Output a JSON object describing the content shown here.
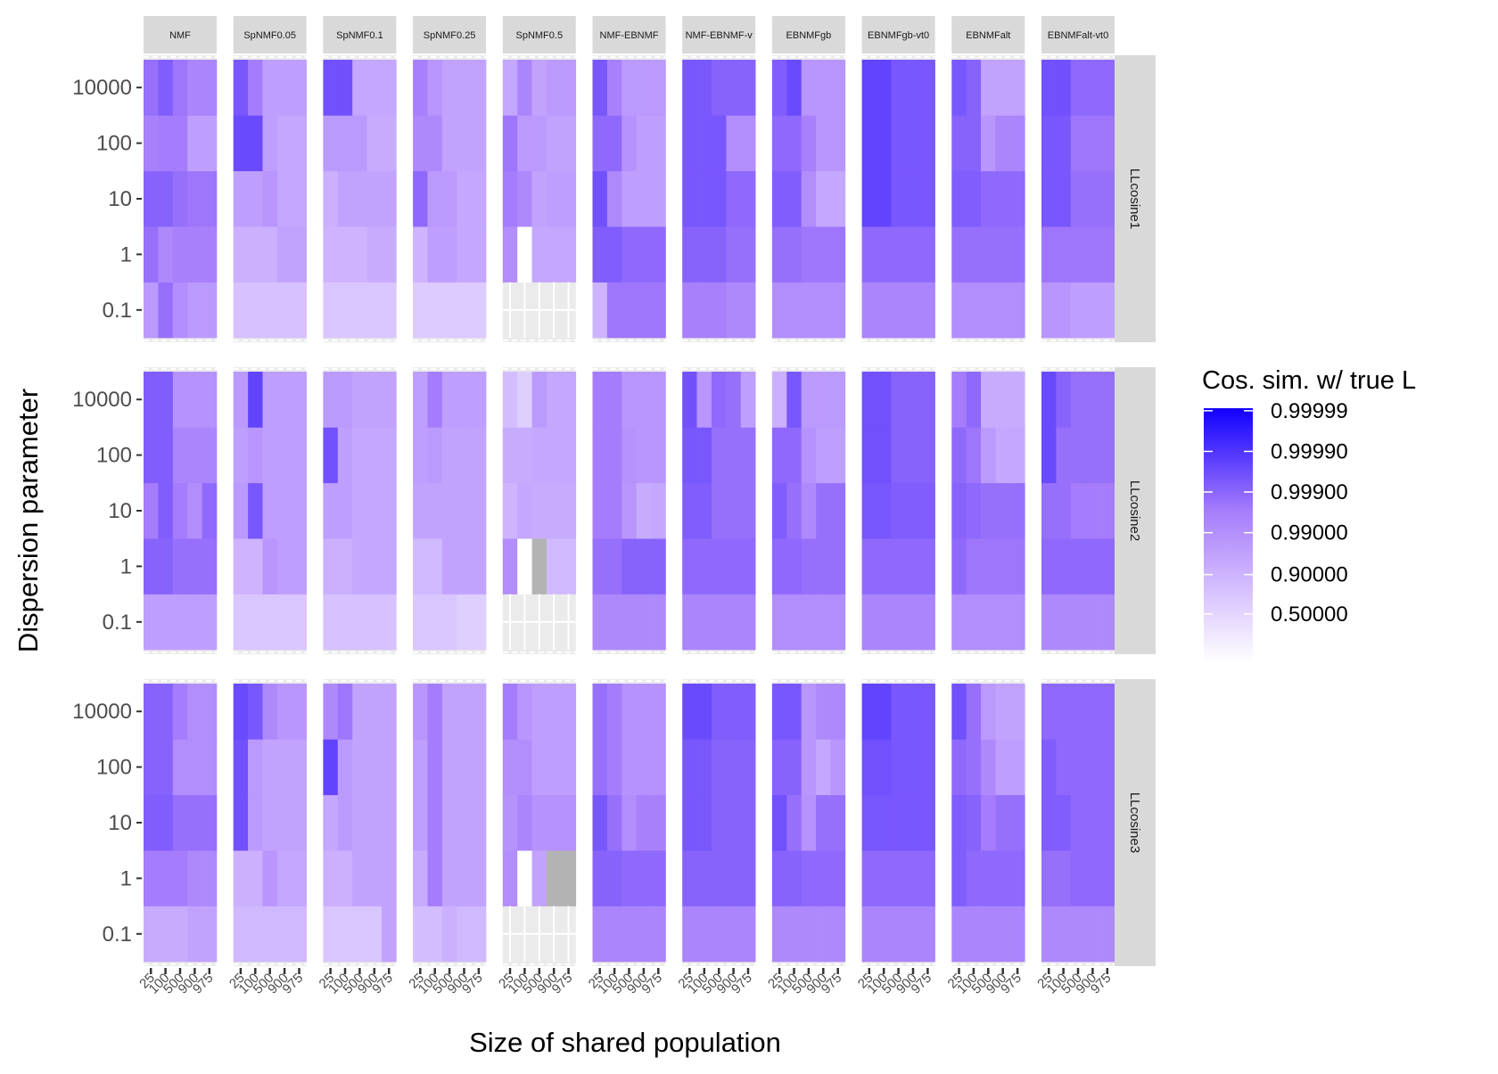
{
  "chart_data": {
    "type": "heatmap",
    "xlabel": "Size of shared population",
    "ylabel": "Dispersion parameter",
    "x_categories": [
      "25",
      "100",
      "500",
      "900",
      "975"
    ],
    "y_categories": [
      "0.1",
      "1",
      "10",
      "100",
      "10000"
    ],
    "facet_columns": [
      "NMF",
      "SpNMF0.05",
      "SpNMF0.1",
      "SpNMF0.25",
      "SpNMF0.5",
      "NMF-EBNMF",
      "NMF-EBNMF-v",
      "EBNMFgb",
      "EBNMFgb-vt0",
      "EBNMFalt",
      "EBNMFalt-vt0"
    ],
    "facet_rows": [
      "LLcosine1",
      "LLcosine2",
      "LLcosine3"
    ],
    "legend": {
      "title": "Cos. sim. w/ true L",
      "position": "right",
      "labels": [
        "0.99999",
        "0.99990",
        "0.99900",
        "0.99000",
        "0.90000",
        "0.50000"
      ],
      "low_color": "#ffffff",
      "high_color": "#1000ff",
      "missing_color": "#b3b3b3"
    },
    "value_note": "cell values are in levels on the legend's transformed scale (0 = 0.5, 1 = 0.9, 2 = 0.99, 3 = 0.999, 4 = 0.9999, 5 = 0.99999); null = missing",
    "cells": [
      [
        [
          [
            2.3,
            3.2,
            2.6,
            2.3,
            2.3
          ],
          [
            3.2,
            2.7,
            2.9,
            2.9,
            2.9
          ],
          [
            3.4,
            3.4,
            3.2,
            3.1,
            3.1
          ],
          [
            2.9,
            3.0,
            3.0,
            2.2,
            2.2
          ],
          [
            3.2,
            3.5,
            3.1,
            2.8,
            2.8
          ]
        ],
        [
          [
            1.4,
            1.4,
            1.4,
            1.4,
            1.4
          ],
          [
            1.8,
            1.8,
            1.8,
            2.1,
            2.1
          ],
          [
            2.2,
            2.2,
            2.4,
            2.0,
            2.0
          ],
          [
            3.8,
            3.8,
            2.2,
            2.0,
            2.0
          ],
          [
            3.6,
            3.0,
            2.2,
            2.2,
            2.2
          ]
        ],
        [
          [
            1.3,
            1.3,
            1.3,
            1.3,
            1.3
          ],
          [
            1.7,
            1.7,
            1.7,
            1.9,
            1.9
          ],
          [
            1.8,
            2.1,
            2.1,
            2.1,
            2.1
          ],
          [
            2.3,
            2.3,
            2.3,
            1.9,
            1.9
          ],
          [
            3.7,
            3.7,
            2.0,
            2.0,
            2.0
          ]
        ],
        [
          [
            1.2,
            1.2,
            1.2,
            1.2,
            1.2
          ],
          [
            1.7,
            2.2,
            2.2,
            2.0,
            2.0
          ],
          [
            3.3,
            2.3,
            2.3,
            2.0,
            2.0
          ],
          [
            2.7,
            2.7,
            2.1,
            2.1,
            2.1
          ],
          [
            2.9,
            2.4,
            2.1,
            2.1,
            2.1
          ]
        ],
        [
          [
            null,
            null,
            null,
            null,
            null
          ],
          [
            2.6,
            null,
            2.0,
            2.0,
            2.0
          ],
          [
            3.0,
            2.7,
            2.1,
            2.2,
            2.2
          ],
          [
            3.1,
            2.3,
            2.3,
            2.1,
            2.1
          ],
          [
            2.0,
            2.8,
            2.1,
            2.3,
            2.3
          ]
        ],
        [
          [
            1.7,
            3.1,
            3.1,
            3.1,
            3.1
          ],
          [
            3.5,
            3.5,
            3.3,
            3.3,
            3.3
          ],
          [
            3.7,
            2.7,
            2.2,
            2.2,
            2.2
          ],
          [
            3.3,
            3.3,
            2.5,
            2.2,
            2.2
          ],
          [
            3.6,
            2.9,
            2.3,
            2.3,
            2.3
          ]
        ],
        [
          [
            2.9,
            2.9,
            2.9,
            2.7,
            2.7
          ],
          [
            3.4,
            3.4,
            3.4,
            3.2,
            3.2
          ],
          [
            3.6,
            3.6,
            3.6,
            3.3,
            3.3
          ],
          [
            3.6,
            3.6,
            3.6,
            2.6,
            2.6
          ],
          [
            3.6,
            3.6,
            3.4,
            3.4,
            3.4
          ]
        ],
        [
          [
            2.6,
            2.6,
            2.6,
            2.6,
            2.6
          ],
          [
            3.2,
            3.2,
            3.1,
            3.1,
            3.1
          ],
          [
            3.5,
            3.5,
            2.6,
            2.0,
            2.0
          ],
          [
            3.3,
            3.3,
            2.9,
            2.4,
            2.4
          ],
          [
            3.5,
            3.8,
            2.4,
            2.4,
            2.4
          ]
        ],
        [
          [
            2.8,
            2.8,
            2.8,
            2.8,
            2.8
          ],
          [
            3.3,
            3.3,
            3.3,
            3.3,
            3.3
          ],
          [
            3.9,
            3.9,
            3.6,
            3.6,
            3.6
          ],
          [
            3.9,
            3.9,
            3.6,
            3.6,
            3.6
          ],
          [
            3.9,
            3.9,
            3.6,
            3.6,
            3.6
          ]
        ],
        [
          [
            2.6,
            2.6,
            2.6,
            2.6,
            2.6
          ],
          [
            3.2,
            3.2,
            3.2,
            3.2,
            3.2
          ],
          [
            3.5,
            3.5,
            3.3,
            3.3,
            3.3
          ],
          [
            3.4,
            3.4,
            2.4,
            2.8,
            2.8
          ],
          [
            3.6,
            3.4,
            2.1,
            2.1,
            2.1
          ]
        ],
        [
          [
            2.4,
            2.4,
            2.2,
            2.2,
            2.2
          ],
          [
            3.1,
            3.1,
            3.1,
            3.1,
            3.1
          ],
          [
            3.6,
            3.6,
            3.2,
            3.2,
            3.2
          ],
          [
            3.6,
            3.6,
            3.1,
            3.1,
            3.1
          ],
          [
            3.7,
            3.7,
            3.3,
            3.3,
            3.3
          ]
        ]
      ],
      [
        [
          [
            2.2,
            2.2,
            2.2,
            2.2,
            2.2
          ],
          [
            3.4,
            3.4,
            3.2,
            3.2,
            3.2
          ],
          [
            3.0,
            3.5,
            3.0,
            2.6,
            3.3
          ],
          [
            3.5,
            3.5,
            2.8,
            2.8,
            2.8
          ],
          [
            3.5,
            3.5,
            2.5,
            2.5,
            2.5
          ]
        ],
        [
          [
            1.3,
            1.3,
            1.3,
            1.3,
            1.3
          ],
          [
            1.7,
            1.7,
            2.4,
            2.2,
            2.2
          ],
          [
            2.3,
            3.6,
            2.2,
            2.2,
            2.2
          ],
          [
            2.2,
            2.4,
            2.2,
            2.2,
            2.2
          ],
          [
            2.3,
            3.9,
            2.2,
            2.2,
            2.2
          ]
        ],
        [
          [
            1.4,
            1.4,
            1.4,
            1.4,
            1.4
          ],
          [
            1.8,
            1.8,
            2.0,
            2.0,
            2.0
          ],
          [
            2.2,
            2.2,
            2.0,
            2.0,
            2.0
          ],
          [
            3.7,
            2.2,
            2.0,
            2.0,
            2.0
          ],
          [
            2.3,
            2.3,
            2.1,
            2.1,
            2.1
          ]
        ],
        [
          [
            1.3,
            1.3,
            1.3,
            1.1,
            1.1
          ],
          [
            1.6,
            1.6,
            2.1,
            2.1,
            2.1
          ],
          [
            2.1,
            2.1,
            2.1,
            2.1,
            2.1
          ],
          [
            2.2,
            2.3,
            2.1,
            2.1,
            2.1
          ],
          [
            2.2,
            3.0,
            2.2,
            2.2,
            2.2
          ]
        ],
        [
          [
            null,
            null,
            null,
            null,
            null
          ],
          [
            2.6,
            null,
            null,
            1.6,
            1.6
          ],
          [
            1.7,
            2.0,
            1.9,
            1.9,
            1.9
          ],
          [
            1.9,
            1.9,
            2.0,
            2.0,
            2.0
          ],
          [
            1.5,
            1.1,
            2.3,
            2.0,
            2.0
          ]
        ],
        [
          [
            2.7,
            2.7,
            2.7,
            2.7,
            2.7
          ],
          [
            3.2,
            3.2,
            3.4,
            3.4,
            3.4
          ],
          [
            3.0,
            3.0,
            2.4,
            1.9,
            2.0
          ],
          [
            3.0,
            3.0,
            2.5,
            2.4,
            2.4
          ],
          [
            3.0,
            3.0,
            2.4,
            2.4,
            2.4
          ]
        ],
        [
          [
            2.8,
            2.8,
            2.8,
            2.8,
            2.8
          ],
          [
            3.3,
            3.3,
            3.3,
            3.3,
            3.3
          ],
          [
            3.5,
            3.5,
            3.2,
            3.2,
            3.2
          ],
          [
            3.6,
            3.6,
            3.2,
            3.2,
            3.2
          ],
          [
            3.7,
            2.4,
            3.3,
            3.2,
            2.2
          ]
        ],
        [
          [
            2.6,
            2.6,
            2.6,
            2.6,
            2.6
          ],
          [
            3.3,
            3.3,
            3.2,
            3.2,
            3.2
          ],
          [
            3.5,
            3.2,
            2.7,
            3.2,
            3.2
          ],
          [
            3.3,
            3.3,
            2.5,
            2.2,
            2.2
          ],
          [
            1.8,
            3.6,
            2.3,
            2.3,
            2.3
          ]
        ],
        [
          [
            2.8,
            2.8,
            2.8,
            2.8,
            2.8
          ],
          [
            3.3,
            3.3,
            3.3,
            3.3,
            3.3
          ],
          [
            3.6,
            3.6,
            3.5,
            3.5,
            3.5
          ],
          [
            3.7,
            3.7,
            3.4,
            3.4,
            3.4
          ],
          [
            3.7,
            3.7,
            3.4,
            3.4,
            3.4
          ]
        ],
        [
          [
            2.6,
            2.6,
            2.6,
            2.6,
            2.6
          ],
          [
            3.3,
            3.1,
            3.1,
            3.1,
            3.1
          ],
          [
            3.4,
            3.3,
            3.2,
            3.2,
            3.2
          ],
          [
            3.3,
            3.1,
            2.3,
            2.0,
            2.0
          ],
          [
            3.0,
            3.3,
            1.9,
            1.9,
            1.9
          ]
        ],
        [
          [
            2.7,
            2.7,
            2.7,
            2.7,
            2.7
          ],
          [
            3.3,
            3.3,
            3.3,
            3.3,
            3.3
          ],
          [
            3.2,
            3.2,
            3.0,
            3.0,
            3.0
          ],
          [
            3.8,
            3.2,
            3.2,
            3.2,
            3.2
          ],
          [
            3.8,
            3.4,
            3.2,
            3.2,
            3.2
          ]
        ]
      ],
      [
        [
          [
            1.9,
            1.9,
            1.9,
            2.1,
            2.1
          ],
          [
            3.0,
            3.0,
            3.0,
            2.7,
            2.7
          ],
          [
            3.5,
            3.5,
            3.2,
            3.2,
            3.2
          ],
          [
            3.4,
            3.4,
            2.6,
            2.6,
            2.6
          ],
          [
            3.4,
            3.4,
            3.0,
            2.6,
            2.6
          ]
        ],
        [
          [
            1.6,
            1.6,
            1.6,
            1.6,
            1.6
          ],
          [
            1.8,
            1.8,
            2.4,
            2.0,
            2.0
          ],
          [
            3.7,
            2.3,
            2.1,
            2.1,
            2.1
          ],
          [
            3.7,
            2.3,
            2.1,
            2.1,
            2.1
          ],
          [
            3.8,
            3.6,
            2.7,
            2.4,
            2.4
          ]
        ],
        [
          [
            1.3,
            1.3,
            1.3,
            1.3,
            2.1
          ],
          [
            1.8,
            1.8,
            2.1,
            2.1,
            2.1
          ],
          [
            2.0,
            2.3,
            2.1,
            2.1,
            2.1
          ],
          [
            3.9,
            2.3,
            2.1,
            2.1,
            2.1
          ],
          [
            2.7,
            3.1,
            2.1,
            2.1,
            2.1
          ]
        ],
        [
          [
            1.5,
            1.5,
            1.8,
            1.6,
            1.6
          ],
          [
            1.9,
            3.0,
            2.1,
            2.1,
            2.1
          ],
          [
            2.2,
            3.0,
            2.1,
            2.1,
            2.1
          ],
          [
            2.2,
            3.0,
            2.1,
            2.1,
            2.1
          ],
          [
            2.4,
            3.0,
            2.1,
            2.1,
            2.1
          ]
        ],
        [
          [
            null,
            null,
            null,
            null,
            null
          ],
          [
            2.6,
            null,
            2.1,
            null,
            null
          ],
          [
            2.5,
            2.8,
            2.5,
            2.5,
            2.5
          ],
          [
            2.6,
            2.6,
            2.2,
            2.2,
            2.2
          ],
          [
            3.0,
            2.4,
            2.2,
            2.2,
            2.2
          ]
        ],
        [
          [
            2.8,
            2.8,
            2.8,
            2.8,
            2.8
          ],
          [
            3.4,
            3.4,
            3.3,
            3.3,
            3.3
          ],
          [
            3.6,
            3.2,
            2.6,
            2.9,
            2.9
          ],
          [
            3.2,
            3.0,
            2.5,
            2.5,
            2.5
          ],
          [
            3.2,
            3.0,
            2.5,
            2.5,
            2.5
          ]
        ],
        [
          [
            2.8,
            2.8,
            2.8,
            2.8,
            2.8
          ],
          [
            3.4,
            3.4,
            3.4,
            3.4,
            3.4
          ],
          [
            3.6,
            3.6,
            3.4,
            3.4,
            3.4
          ],
          [
            3.6,
            3.6,
            3.4,
            3.4,
            3.4
          ],
          [
            3.8,
            3.8,
            3.5,
            3.5,
            3.5
          ]
        ],
        [
          [
            2.7,
            2.7,
            2.7,
            2.7,
            2.7
          ],
          [
            3.4,
            3.4,
            3.3,
            3.3,
            3.3
          ],
          [
            3.7,
            3.2,
            2.5,
            3.2,
            3.2
          ],
          [
            3.4,
            3.4,
            2.4,
            2.0,
            2.4
          ],
          [
            3.6,
            3.6,
            2.4,
            2.7,
            2.7
          ]
        ],
        [
          [
            2.8,
            2.8,
            2.8,
            2.8,
            2.8
          ],
          [
            3.3,
            3.3,
            3.3,
            3.3,
            3.3
          ],
          [
            3.6,
            3.6,
            3.6,
            3.6,
            3.6
          ],
          [
            3.7,
            3.7,
            3.6,
            3.6,
            3.6
          ],
          [
            3.9,
            3.9,
            3.6,
            3.6,
            3.6
          ]
        ],
        [
          [
            2.8,
            2.8,
            2.8,
            2.8,
            2.8
          ],
          [
            3.5,
            3.3,
            3.3,
            3.3,
            3.3
          ],
          [
            3.5,
            3.4,
            3.0,
            3.2,
            3.2
          ],
          [
            3.3,
            3.2,
            2.7,
            2.2,
            2.2
          ],
          [
            3.7,
            3.2,
            2.3,
            2.1,
            2.1
          ]
        ],
        [
          [
            2.7,
            2.7,
            2.7,
            2.7,
            2.7
          ],
          [
            3.2,
            3.2,
            3.3,
            3.3,
            3.3
          ],
          [
            3.5,
            3.5,
            3.3,
            3.3,
            3.3
          ],
          [
            3.5,
            3.3,
            3.3,
            3.3,
            3.3
          ],
          [
            3.3,
            3.3,
            3.3,
            3.3,
            3.3
          ]
        ]
      ]
    ]
  }
}
